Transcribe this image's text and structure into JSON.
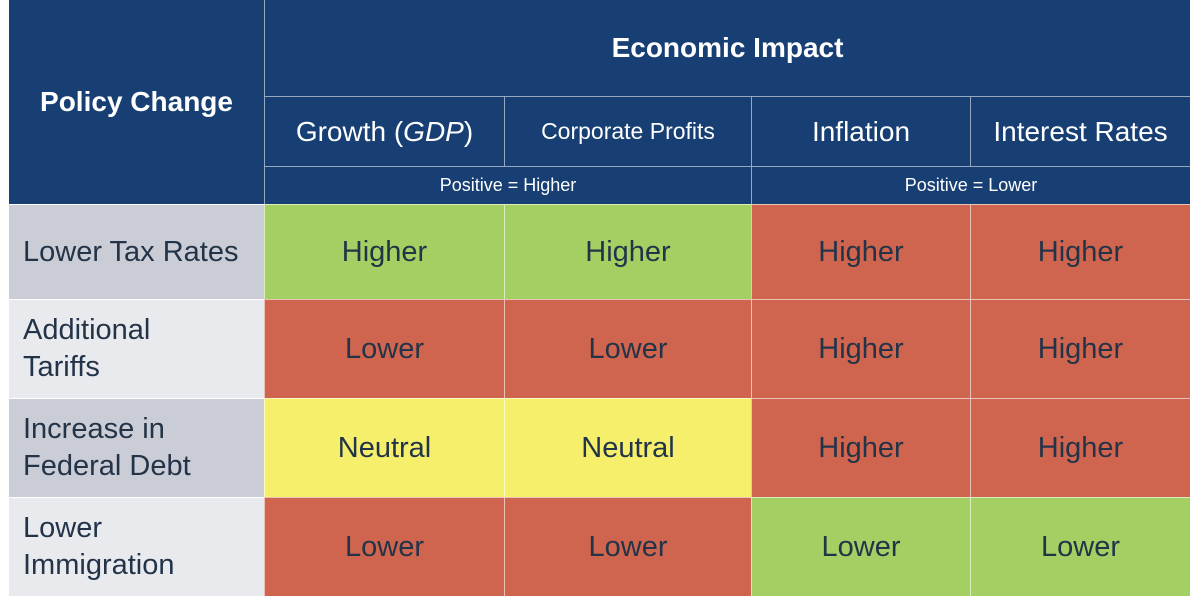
{
  "header": {
    "policy_change": "Policy Change",
    "economic_impact": "Economic Impact",
    "columns": [
      {
        "label": "Growth (",
        "italic": "GDP",
        "suffix": ")"
      },
      {
        "label": "Corporate Profits"
      },
      {
        "label": "Inflation"
      },
      {
        "label": "Interest Rates"
      }
    ],
    "groups": [
      "Positive = Higher",
      "Positive = Lower"
    ]
  },
  "colors": {
    "header": "#173F73",
    "positive": "#A4CF63",
    "negative": "#D0654F",
    "neutral": "#F5EF6B",
    "label_dark": "#CACDD6",
    "label_light": "#E9EAEE",
    "text": "#233448"
  },
  "chart_data": {
    "type": "table",
    "rows": [
      {
        "label": "Lower Tax Rates",
        "values": [
          "Higher",
          "Higher",
          "Higher",
          "Higher"
        ],
        "ratings": [
          "positive",
          "positive",
          "negative",
          "negative"
        ]
      },
      {
        "label": "Additional Tariffs",
        "values": [
          "Lower",
          "Lower",
          "Higher",
          "Higher"
        ],
        "ratings": [
          "negative",
          "negative",
          "negative",
          "negative"
        ]
      },
      {
        "label": "Increase in Federal Debt",
        "values": [
          "Neutral",
          "Neutral",
          "Higher",
          "Higher"
        ],
        "ratings": [
          "neutral",
          "neutral",
          "negative",
          "negative"
        ]
      },
      {
        "label": "Lower Immigration",
        "values": [
          "Lower",
          "Lower",
          "Lower",
          "Lower"
        ],
        "ratings": [
          "negative",
          "negative",
          "positive",
          "positive"
        ]
      }
    ]
  }
}
